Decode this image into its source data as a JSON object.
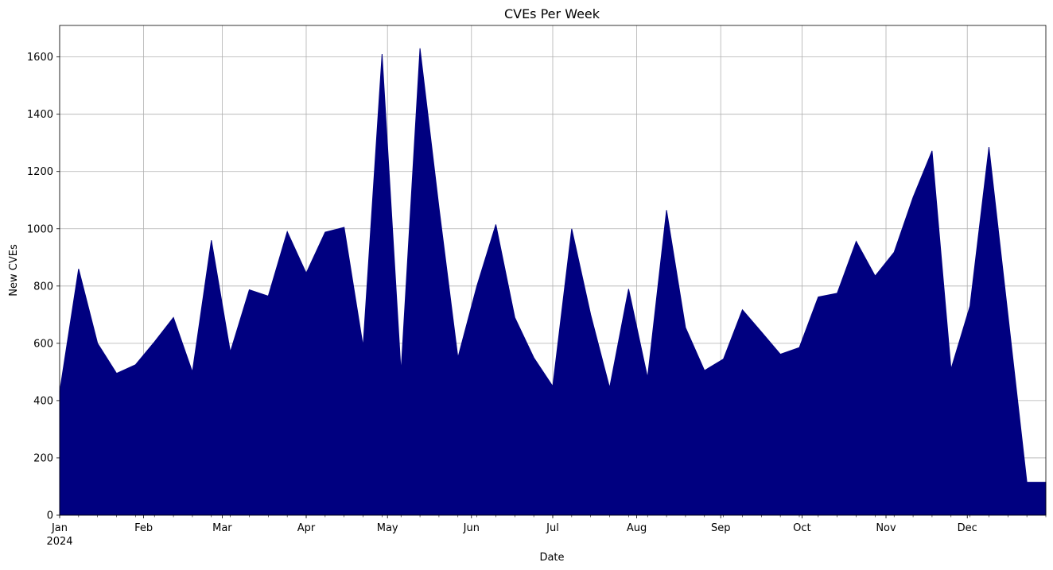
{
  "chart_data": {
    "type": "area",
    "title": "CVEs Per Week",
    "xlabel": "Date",
    "ylabel": "New CVEs",
    "year_label": "2024",
    "fill_color": "#000080",
    "grid": true,
    "xlim": [
      "2024-01-01",
      "2024-12-30"
    ],
    "ylim": [
      0,
      1710
    ],
    "y_ticks": [
      0,
      200,
      400,
      600,
      800,
      1000,
      1200,
      1400,
      1600
    ],
    "x_ticks": [
      {
        "date": "2024-01-01",
        "label": "Jan"
      },
      {
        "date": "2024-02-01",
        "label": "Feb"
      },
      {
        "date": "2024-03-01",
        "label": "Mar"
      },
      {
        "date": "2024-04-01",
        "label": "Apr"
      },
      {
        "date": "2024-05-01",
        "label": "May"
      },
      {
        "date": "2024-06-01",
        "label": "Jun"
      },
      {
        "date": "2024-07-01",
        "label": "Jul"
      },
      {
        "date": "2024-08-01",
        "label": "Aug"
      },
      {
        "date": "2024-09-01",
        "label": "Sep"
      },
      {
        "date": "2024-10-01",
        "label": "Oct"
      },
      {
        "date": "2024-11-01",
        "label": "Nov"
      },
      {
        "date": "2024-12-01",
        "label": "Dec"
      }
    ],
    "series": [
      {
        "x": [
          "2024-01-01",
          "2024-01-08",
          "2024-01-15",
          "2024-01-22",
          "2024-01-29",
          "2024-02-05",
          "2024-02-12",
          "2024-02-19",
          "2024-02-26",
          "2024-03-04",
          "2024-03-11",
          "2024-03-18",
          "2024-03-25",
          "2024-04-01",
          "2024-04-08",
          "2024-04-15",
          "2024-04-22",
          "2024-04-29",
          "2024-05-06",
          "2024-05-13",
          "2024-05-20",
          "2024-05-27",
          "2024-06-03",
          "2024-06-10",
          "2024-06-17",
          "2024-06-24",
          "2024-07-01",
          "2024-07-08",
          "2024-07-15",
          "2024-07-22",
          "2024-07-29",
          "2024-08-05",
          "2024-08-12",
          "2024-08-19",
          "2024-08-26",
          "2024-09-02",
          "2024-09-09",
          "2024-09-16",
          "2024-09-23",
          "2024-09-30",
          "2024-10-07",
          "2024-10-14",
          "2024-10-21",
          "2024-10-28",
          "2024-11-04",
          "2024-11-11",
          "2024-11-18",
          "2024-11-25",
          "2024-12-02",
          "2024-12-09",
          "2024-12-16",
          "2024-12-23",
          "2024-12-30"
        ],
        "y": [
          430,
          860,
          600,
          495,
          525,
          605,
          690,
          500,
          960,
          570,
          787,
          765,
          990,
          845,
          988,
          1005,
          590,
          1610,
          500,
          1630,
          1075,
          550,
          800,
          1015,
          690,
          550,
          450,
          1000,
          700,
          445,
          790,
          480,
          1065,
          655,
          505,
          545,
          717,
          640,
          562,
          585,
          762,
          775,
          956,
          835,
          918,
          1110,
          1272,
          510,
          730,
          1285,
          700,
          115,
          115
        ]
      }
    ]
  }
}
